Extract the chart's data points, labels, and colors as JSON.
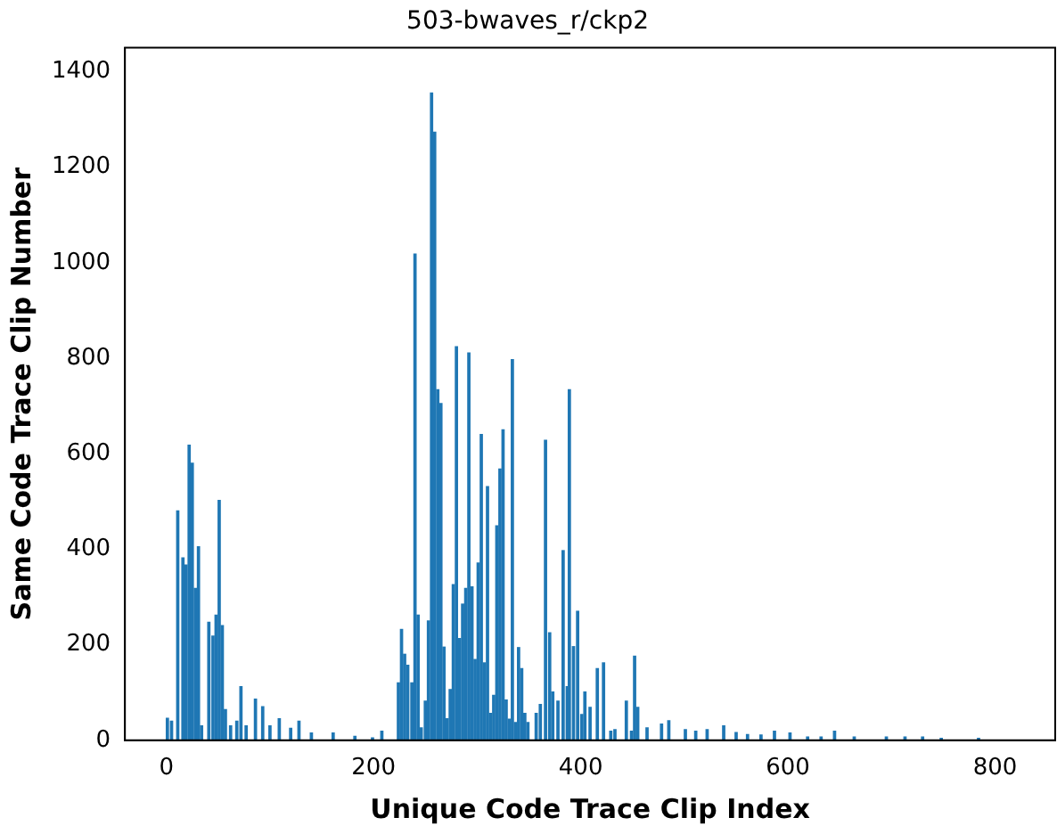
{
  "chart_data": {
    "type": "bar",
    "title": "503-bwaves_r/ckp2",
    "xlabel": "Unique Code Trace Clip Index",
    "ylabel": "Same Code Trace Clip Number",
    "x": [
      1,
      5,
      11,
      16,
      19,
      22,
      25,
      28,
      31,
      34,
      41,
      45,
      48,
      51,
      54,
      57,
      62,
      68,
      72,
      77,
      86,
      93,
      100,
      109,
      120,
      128,
      140,
      161,
      182,
      199,
      208,
      224,
      227,
      230,
      233,
      237,
      240,
      243,
      246,
      250,
      253,
      256,
      259,
      262,
      265,
      268,
      271,
      274,
      277,
      280,
      283,
      286,
      289,
      292,
      295,
      298,
      301,
      304,
      307,
      310,
      313,
      316,
      319,
      322,
      325,
      328,
      331,
      334,
      337,
      340,
      343,
      346,
      349,
      357,
      361,
      366,
      370,
      373,
      378,
      383,
      387,
      389,
      393,
      397,
      401,
      404,
      409,
      416,
      422,
      429,
      433,
      444,
      449,
      452,
      455,
      464,
      478,
      485,
      501,
      511,
      522,
      538,
      550,
      561,
      574,
      587,
      602,
      619,
      632,
      645,
      664,
      695,
      713,
      730,
      748,
      784
    ],
    "values": [
      46,
      40,
      480,
      382,
      367,
      618,
      580,
      318,
      405,
      30,
      247,
      218,
      262,
      502,
      240,
      64,
      30,
      40,
      112,
      30,
      86,
      70,
      30,
      45,
      25,
      40,
      15,
      15,
      8,
      5,
      19,
      120,
      232,
      180,
      157,
      120,
      1018,
      262,
      26,
      82,
      250,
      1355,
      1273,
      734,
      705,
      195,
      45,
      106,
      326,
      824,
      213,
      285,
      318,
      811,
      321,
      169,
      371,
      640,
      162,
      531,
      56,
      94,
      449,
      568,
      650,
      84,
      44,
      797,
      37,
      194,
      150,
      56,
      37,
      56,
      75,
      628,
      225,
      101,
      82,
      397,
      112,
      734,
      196,
      270,
      54,
      101,
      69,
      150,
      162,
      19,
      22,
      82,
      19,
      176,
      69,
      26,
      34,
      41,
      22,
      19,
      22,
      30,
      16,
      12,
      11,
      19,
      15,
      7,
      7,
      19,
      7,
      7,
      7,
      7,
      4,
      4
    ],
    "color": "#1f77b4",
    "xlim": [
      -40,
      858
    ],
    "xticks": [
      0,
      200,
      400,
      600,
      800
    ],
    "ylim": [
      0,
      1450
    ],
    "yticks": [
      0,
      200,
      400,
      600,
      800,
      1000,
      1200,
      1400
    ],
    "grid": false,
    "legend": false
  }
}
